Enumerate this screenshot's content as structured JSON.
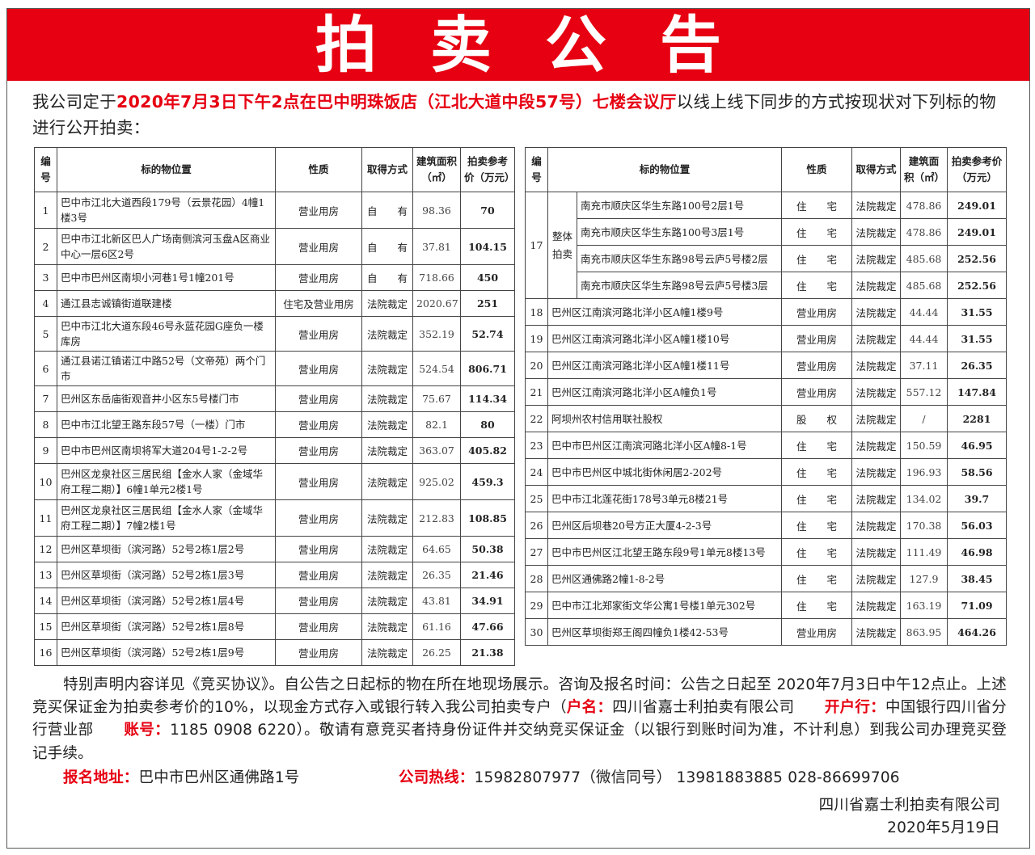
{
  "banner": {
    "title": "拍卖公告",
    "bg_color": "#e60012"
  },
  "intro": {
    "before": "我公司定于",
    "highlight": "2020年7月3日下午2点在巴中明珠饭店（江北大道中段57号）七楼会议厅",
    "after": "以线上线下同步的方式按现状对下列标的物进行公开拍卖："
  },
  "headers": {
    "num": "编号",
    "location": "标的物位置",
    "nature": "性质",
    "method": "取得方式",
    "area": "建筑面积（㎡）",
    "price": "拍卖参考价（万元）"
  },
  "left_rows": [
    {
      "num": "1",
      "location": "巴中市江北大道西段179号（云景花园）4幢1楼3号",
      "nature": "营业用房",
      "method": "自　　有",
      "area": "98.36",
      "price": "70"
    },
    {
      "num": "2",
      "location": "巴中市江北新区巴人广场南侧滨河玉盘A区商业中心一层6区2号",
      "nature": "营业用房",
      "method": "自　　有",
      "area": "37.81",
      "price": "104.15"
    },
    {
      "num": "3",
      "location": "巴中市巴州区南坝小河巷1号1幢201号",
      "nature": "营业用房",
      "method": "自　　有",
      "area": "718.66",
      "price": "450"
    },
    {
      "num": "4",
      "location": "通江县志诚镇街道联建楼",
      "nature": "住宅及营业用房",
      "method": "法院裁定",
      "area": "2020.67",
      "price": "251"
    },
    {
      "num": "5",
      "location": "巴中市江北大道东段46号永蓝花园G座负一楼库房",
      "nature": "营业用房",
      "method": "法院裁定",
      "area": "352.19",
      "price": "52.74"
    },
    {
      "num": "6",
      "location": "通江县诺江镇诺江中路52号（文帝苑）两个门市",
      "nature": "营业用房",
      "method": "法院裁定",
      "area": "524.54",
      "price": "806.71"
    },
    {
      "num": "7",
      "location": "巴州区东岳庙街观音井小区东5号楼门市",
      "nature": "营业用房",
      "method": "法院裁定",
      "area": "75.67",
      "price": "114.34"
    },
    {
      "num": "8",
      "location": "巴中市江北望王路东段57号（一楼）门市",
      "nature": "营业用房",
      "method": "法院裁定",
      "area": "82.1",
      "price": "80"
    },
    {
      "num": "9",
      "location": "巴中市巴州区南坝将军大道204号1-2-2号",
      "nature": "营业用房",
      "method": "法院裁定",
      "area": "363.07",
      "price": "405.82"
    },
    {
      "num": "10",
      "location": "巴州区龙泉社区三居民组【金水人家（金域华府工程二期）】6幢1单元2楼1号",
      "nature": "营业用房",
      "method": "法院裁定",
      "area": "925.02",
      "price": "459.3"
    },
    {
      "num": "11",
      "location": "巴州区龙泉社区三居民组【金水人家（金域华府工程二期）】7幢2楼1号",
      "nature": "营业用房",
      "method": "法院裁定",
      "area": "212.83",
      "price": "108.85"
    },
    {
      "num": "12",
      "location": "巴州区草坝街（滨河路）52号2栋1层2号",
      "nature": "营业用房",
      "method": "法院裁定",
      "area": "64.65",
      "price": "50.38"
    },
    {
      "num": "13",
      "location": "巴州区草坝街（滨河路）52号2栋1层3号",
      "nature": "营业用房",
      "method": "法院裁定",
      "area": "26.35",
      "price": "21.46"
    },
    {
      "num": "14",
      "location": "巴州区草坝街（滨河路）52号2栋1层4号",
      "nature": "营业用房",
      "method": "法院裁定",
      "area": "43.81",
      "price": "34.91"
    },
    {
      "num": "15",
      "location": "巴州区草坝街（滨河路）52号2栋1层8号",
      "nature": "营业用房",
      "method": "法院裁定",
      "area": "61.16",
      "price": "47.66"
    },
    {
      "num": "16",
      "location": "巴州区草坝街（滨河路）52号2栋1层9号",
      "nature": "营业用房",
      "method": "法院裁定",
      "area": "26.25",
      "price": "21.38"
    }
  ],
  "group17": {
    "num": "17",
    "label": "整体拍卖",
    "items": [
      {
        "location": "南充市顺庆区华生东路100号2层1号",
        "nature": "住　　宅",
        "method": "法院裁定",
        "area": "478.86",
        "price": "249.01"
      },
      {
        "location": "南充市顺庆区华生东路100号3层1号",
        "nature": "住　　宅",
        "method": "法院裁定",
        "area": "478.86",
        "price": "249.01"
      },
      {
        "location": "南充市顺庆区华生东路98号云庐5号楼2层",
        "nature": "住　　宅",
        "method": "法院裁定",
        "area": "485.68",
        "price": "252.56"
      },
      {
        "location": "南充市顺庆区华生东路98号云庐5号楼3层",
        "nature": "住　　宅",
        "method": "法院裁定",
        "area": "485.68",
        "price": "252.56"
      }
    ]
  },
  "right_rows": [
    {
      "num": "18",
      "location": "巴州区江南滨河路北洋小区A幢1楼9号",
      "nature": "营业用房",
      "method": "法院裁定",
      "area": "44.44",
      "price": "31.55"
    },
    {
      "num": "19",
      "location": "巴州区江南滨河路北洋小区A幢1楼10号",
      "nature": "营业用房",
      "method": "法院裁定",
      "area": "44.44",
      "price": "31.55"
    },
    {
      "num": "20",
      "location": "巴州区江南滨河路北洋小区A幢1楼11号",
      "nature": "营业用房",
      "method": "法院裁定",
      "area": "37.11",
      "price": "26.35"
    },
    {
      "num": "21",
      "location": "巴州区江南滨河路北洋小区A幢负1号",
      "nature": "营业用房",
      "method": "法院裁定",
      "area": "557.12",
      "price": "147.84"
    },
    {
      "num": "22",
      "location": "阿坝州农村信用联社股权",
      "nature": "股　　权",
      "method": "法院裁定",
      "area": "/",
      "price": "2281"
    },
    {
      "num": "23",
      "location": "巴中市巴州区江南滨河路北洋小区A幢8-1号",
      "nature": "住　　宅",
      "method": "法院裁定",
      "area": "150.59",
      "price": "46.95"
    },
    {
      "num": "24",
      "location": "巴中市巴州区中城北街休闲居2-202号",
      "nature": "住　　宅",
      "method": "法院裁定",
      "area": "196.93",
      "price": "58.56"
    },
    {
      "num": "25",
      "location": "巴中市江北莲花街178号3单元8楼21号",
      "nature": "住　　宅",
      "method": "法院裁定",
      "area": "134.02",
      "price": "39.7"
    },
    {
      "num": "26",
      "location": "巴州区后坝巷20号方正大厦4-2-3号",
      "nature": "住　　宅",
      "method": "法院裁定",
      "area": "170.38",
      "price": "56.03"
    },
    {
      "num": "27",
      "location": "巴中市巴州区江北望王路东段9号1单元8楼13号",
      "nature": "住　　宅",
      "method": "法院裁定",
      "area": "111.49",
      "price": "46.98"
    },
    {
      "num": "28",
      "location": "巴州区通佛路2幢1-8-2号",
      "nature": "住　　宅",
      "method": "法院裁定",
      "area": "127.9",
      "price": "38.45"
    },
    {
      "num": "29",
      "location": "巴中市江北郑家街文华公寓1号楼1单元302号",
      "nature": "住　　宅",
      "method": "法院裁定",
      "area": "163.19",
      "price": "71.09"
    },
    {
      "num": "30",
      "location": "巴州区草坝街郑王阁四幢负1楼42-53号",
      "nature": "营业用房",
      "method": "法院裁定",
      "area": "863.95",
      "price": "464.26"
    }
  ],
  "footer": {
    "p1": "特别声明内容详见《竞买协议》。自公告之日起标的物在所在地现场展示。咨询及报名时间：公告之日起至 2020年7月3日中午12点止。上述竞买保证金为拍卖参考价的10%，以现金方式存入或银行转入我公司拍卖专户（",
    "account_name_label": "户名：",
    "account_name": "四川省嘉士利拍卖有限公司　　",
    "bank_label": "开户行：",
    "bank": "中国银行四川省分行营业部　　",
    "account_no_label": "账号：",
    "account_no": "1185 0908 6220",
    "p2": "）。敬请有意竞买者持身份证件并交纳竞买保证金（以银行到账时间为准，不计利息）到我公司办理竞买登记手续。",
    "address_label": "报名地址：",
    "address": "巴中市巴州区通佛路1号",
    "hotline_label": "公司热线：",
    "hotline": "15982807977（微信同号） 13981883885  028-86699706",
    "company": "四川省嘉士利拍卖有限公司",
    "date": "2020年5月19日"
  }
}
